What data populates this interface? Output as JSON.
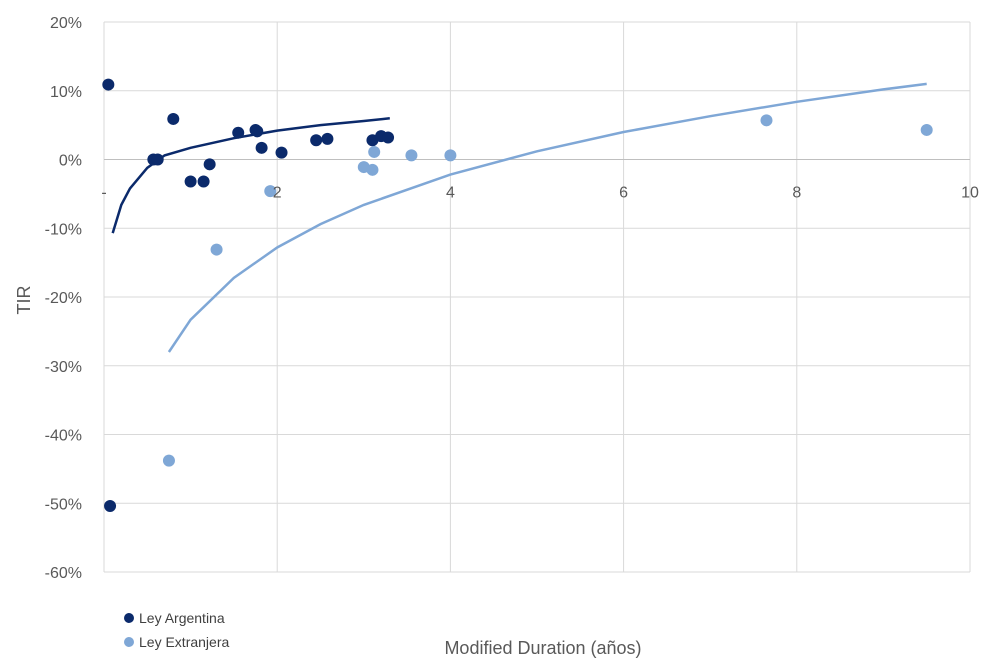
{
  "chart_data": {
    "type": "scatter",
    "xlabel": "Modified Duration (años)",
    "ylabel": "TIR",
    "xlim": [
      0,
      10
    ],
    "ylim": [
      -0.6,
      0.2
    ],
    "x_ticks": [
      "-",
      "2",
      "4",
      "6",
      "8",
      "10"
    ],
    "y_ticks": [
      "20%",
      "10%",
      "0%",
      "-10%",
      "-20%",
      "-30%",
      "-40%",
      "-50%",
      "-60%"
    ],
    "grid": true,
    "legend_position": "bottom-left",
    "colors": {
      "argentina": "#0b2a6b",
      "extranjera": "#7fa7d6",
      "grid": "#d9d9d9"
    },
    "series": [
      {
        "name": "Ley Argentina",
        "color": "#0b2a6b",
        "points": [
          [
            0.05,
            0.109
          ],
          [
            0.07,
            -0.504
          ],
          [
            0.57,
            0.0
          ],
          [
            0.62,
            0.0
          ],
          [
            0.8,
            0.059
          ],
          [
            1.0,
            -0.032
          ],
          [
            1.15,
            -0.032
          ],
          [
            1.22,
            -0.007
          ],
          [
            1.55,
            0.039
          ],
          [
            1.75,
            0.043
          ],
          [
            1.77,
            0.041
          ],
          [
            1.82,
            0.017
          ],
          [
            2.05,
            0.01
          ],
          [
            2.45,
            0.028
          ],
          [
            2.58,
            0.03
          ],
          [
            3.1,
            0.028
          ],
          [
            3.2,
            0.034
          ],
          [
            3.28,
            0.032
          ]
        ],
        "trend": [
          [
            0.1,
            -0.107
          ],
          [
            0.2,
            -0.066
          ],
          [
            0.3,
            -0.042
          ],
          [
            0.5,
            -0.012
          ],
          [
            0.7,
            0.006
          ],
          [
            1.0,
            0.017
          ],
          [
            1.5,
            0.031
          ],
          [
            2.0,
            0.042
          ],
          [
            2.5,
            0.05
          ],
          [
            3.0,
            0.056
          ],
          [
            3.3,
            0.06
          ]
        ]
      },
      {
        "name": "Ley Extranjera",
        "color": "#7fa7d6",
        "points": [
          [
            0.75,
            -0.438
          ],
          [
            1.3,
            -0.131
          ],
          [
            1.92,
            -0.046
          ],
          [
            3.0,
            -0.011
          ],
          [
            3.1,
            -0.015
          ],
          [
            3.12,
            0.011
          ],
          [
            3.55,
            0.006
          ],
          [
            4.0,
            0.006
          ],
          [
            7.65,
            0.057
          ],
          [
            9.5,
            0.043
          ]
        ],
        "trend": [
          [
            0.75,
            -0.28
          ],
          [
            1.0,
            -0.233
          ],
          [
            1.5,
            -0.172
          ],
          [
            2.0,
            -0.128
          ],
          [
            2.5,
            -0.094
          ],
          [
            3.0,
            -0.066
          ],
          [
            4.0,
            -0.022
          ],
          [
            5.0,
            0.012
          ],
          [
            6.0,
            0.04
          ],
          [
            7.0,
            0.063
          ],
          [
            8.0,
            0.084
          ],
          [
            9.0,
            0.102
          ],
          [
            9.5,
            0.11
          ]
        ]
      }
    ]
  }
}
